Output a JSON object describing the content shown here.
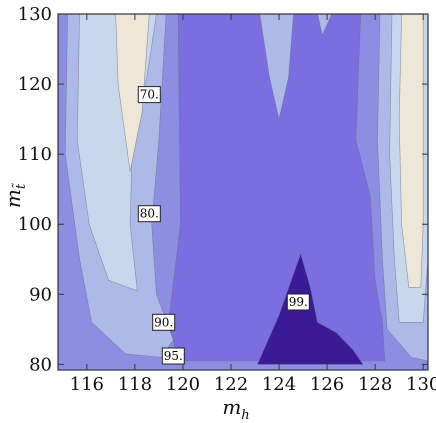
{
  "chart_data": {
    "type": "contour",
    "title": "",
    "xlabel": "m",
    "xlabel_sub": "h",
    "ylabel": "m",
    "ylabel_sub": "t̃",
    "xlim": [
      114.8,
      130.2
    ],
    "ylim": [
      79.2,
      130.0
    ],
    "xticks": [
      116,
      118,
      120,
      122,
      124,
      126,
      128,
      130
    ],
    "xtick_labels": [
      "116",
      "118",
      "120",
      "122",
      "124",
      "126",
      "128",
      "130"
    ],
    "yticks": [
      80,
      90,
      100,
      110,
      120,
      130
    ],
    "ytick_labels": [
      "80",
      "90",
      "100",
      "110",
      "120",
      "130"
    ],
    "levels": [
      70,
      80,
      90,
      95,
      99
    ],
    "level_colors": {
      "below_70": "#eee6d6",
      "70_80": "#c7d7ec",
      "80_90": "#adb9e6",
      "90_95": "#8c8ee3",
      "95_99": "#7a6ee0",
      "above_99": "#3b1a96"
    },
    "contour_labels": [
      {
        "text": "70.",
        "x": 118.6,
        "y": 118.5
      },
      {
        "text": "80.",
        "x": 118.6,
        "y": 101.5
      },
      {
        "text": "90.",
        "x": 119.2,
        "y": 86.0
      },
      {
        "text": "95.",
        "x": 119.6,
        "y": 81.2
      },
      {
        "text": "99.",
        "x": 124.8,
        "y": 88.9
      }
    ],
    "regions": [
      {
        "level": "90_95",
        "points": [
          [
            114.8,
            79.2
          ],
          [
            130.2,
            79.2
          ],
          [
            130.2,
            130
          ],
          [
            114.8,
            130
          ]
        ]
      },
      {
        "level": "95_99",
        "points": [
          [
            119.8,
            80.5
          ],
          [
            119.4,
            86
          ],
          [
            119.9,
            100
          ],
          [
            119.8,
            130
          ],
          [
            127.4,
            130
          ],
          [
            127.2,
            112
          ],
          [
            127.8,
            104
          ],
          [
            128.0,
            92
          ],
          [
            128.3,
            86
          ],
          [
            128.4,
            80.5
          ]
        ]
      },
      {
        "level": "80_90",
        "points": [
          [
            115.2,
            130
          ],
          [
            115.1,
            110
          ],
          [
            115.7,
            95
          ],
          [
            116.2,
            86
          ],
          [
            117.6,
            81.5
          ],
          [
            119.1,
            81.0
          ],
          [
            119.6,
            83.5
          ],
          [
            118.9,
            90
          ],
          [
            118.7,
            100
          ],
          [
            119.0,
            112
          ],
          [
            119.3,
            130
          ]
        ]
      },
      {
        "level": "80_90",
        "points": [
          [
            123.2,
            130
          ],
          [
            123.6,
            121
          ],
          [
            124.0,
            115
          ],
          [
            124.4,
            121
          ],
          [
            124.6,
            130
          ]
        ]
      },
      {
        "level": "80_90",
        "points": [
          [
            128.2,
            130
          ],
          [
            128.1,
            112
          ],
          [
            128.3,
            95
          ],
          [
            128.5,
            85
          ],
          [
            129.5,
            81.0
          ],
          [
            130.2,
            80.5
          ],
          [
            130.2,
            130
          ]
        ]
      },
      {
        "level": "80_90",
        "points": [
          [
            125.6,
            130
          ],
          [
            125.8,
            127
          ],
          [
            126.2,
            130
          ]
        ]
      },
      {
        "level": "70_80",
        "points": [
          [
            115.7,
            130
          ],
          [
            115.6,
            112
          ],
          [
            116.1,
            100
          ],
          [
            116.9,
            92
          ],
          [
            118.1,
            90.5
          ],
          [
            117.8,
            100
          ],
          [
            117.9,
            112
          ],
          [
            118.5,
            121
          ],
          [
            118.9,
            130
          ]
        ]
      },
      {
        "level": "70_80",
        "points": [
          [
            128.7,
            130
          ],
          [
            128.6,
            110
          ],
          [
            128.8,
            95
          ],
          [
            129.0,
            86
          ],
          [
            130.0,
            86
          ],
          [
            130.2,
            95
          ],
          [
            130.2,
            130
          ]
        ]
      },
      {
        "level": "below_70",
        "points": [
          [
            117.2,
            130
          ],
          [
            117.3,
            120
          ],
          [
            117.8,
            107.5
          ],
          [
            118.3,
            116
          ],
          [
            118.6,
            130
          ]
        ]
      },
      {
        "level": "below_70",
        "points": [
          [
            129.1,
            130
          ],
          [
            129.0,
            115
          ],
          [
            129.1,
            100
          ],
          [
            129.4,
            91
          ],
          [
            129.9,
            91
          ],
          [
            130.0,
            100
          ],
          [
            130.0,
            130
          ]
        ]
      },
      {
        "level": "above_99",
        "points": [
          [
            123.1,
            80
          ],
          [
            124.0,
            87
          ],
          [
            124.9,
            95.8
          ],
          [
            125.3,
            91
          ],
          [
            125.6,
            86
          ],
          [
            126.4,
            84.5
          ],
          [
            127.1,
            82
          ],
          [
            127.5,
            80
          ]
        ]
      }
    ]
  }
}
